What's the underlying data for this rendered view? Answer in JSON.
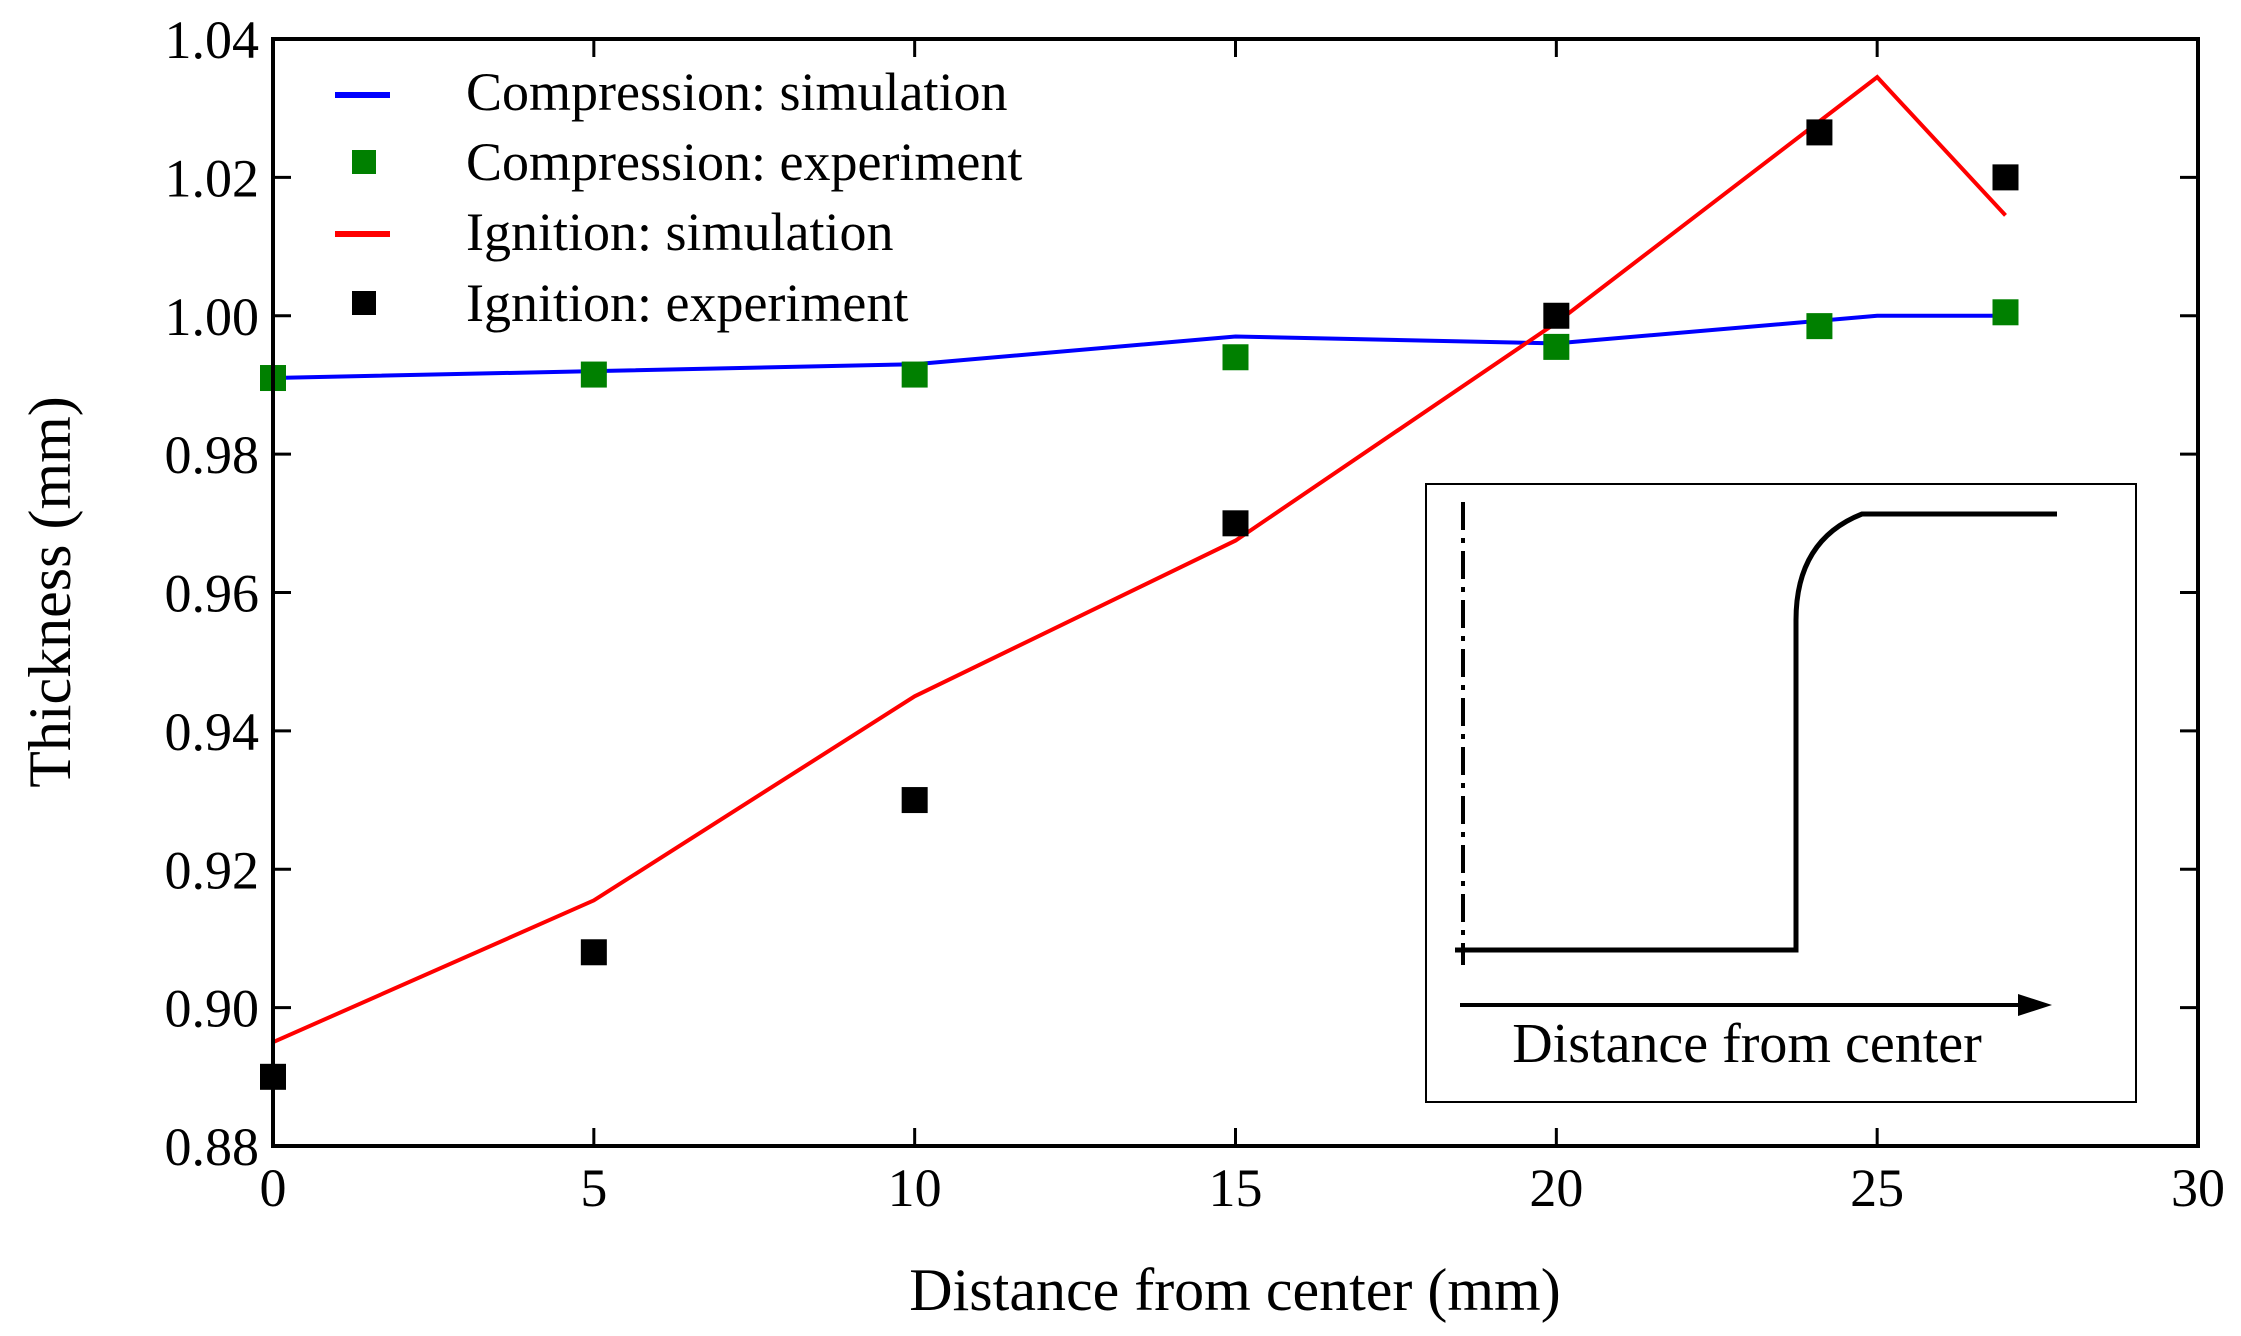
{
  "chart_data": {
    "type": "line",
    "xlabel": "Distance from center (mm)",
    "ylabel": "Thickness (mm)",
    "xlim": [
      0,
      30
    ],
    "ylim": [
      0.88,
      1.04
    ],
    "xticks": [
      0,
      5,
      10,
      15,
      20,
      25,
      30
    ],
    "yticks": [
      0.88,
      0.9,
      0.92,
      0.94,
      0.96,
      0.98,
      1.0,
      1.02,
      1.04
    ],
    "xtick_labels": [
      "0",
      "5",
      "10",
      "15",
      "20",
      "25",
      "30"
    ],
    "ytick_labels": [
      "0.88",
      "0.90",
      "0.92",
      "0.94",
      "0.96",
      "0.98",
      "1.00",
      "1.02",
      "1.04"
    ],
    "grid": false,
    "legend_position": "top-left",
    "series": [
      {
        "name": "Compression: simulation",
        "kind": "line",
        "color": "#0000ff",
        "x": [
          0,
          5,
          10,
          15,
          20,
          25,
          27
        ],
        "y": [
          0.991,
          0.992,
          0.993,
          0.997,
          0.996,
          1.0,
          1.0
        ]
      },
      {
        "name": "Compression: experiment",
        "kind": "marker",
        "color": "#008000",
        "x": [
          0,
          5,
          10,
          15,
          20,
          24.1,
          27
        ],
        "y": [
          0.991,
          0.9915,
          0.9915,
          0.994,
          0.9955,
          0.9985,
          1.0005
        ]
      },
      {
        "name": "Ignition: simulation",
        "kind": "line",
        "color": "#ff0000",
        "x": [
          0,
          5,
          10,
          15,
          20,
          25,
          27
        ],
        "y": [
          0.895,
          0.9155,
          0.945,
          0.9675,
          0.999,
          1.0345,
          1.0145
        ]
      },
      {
        "name": "Ignition: experiment",
        "kind": "marker",
        "color": "#000000",
        "x": [
          0,
          5,
          10,
          15,
          20,
          24.1,
          27
        ],
        "y": [
          0.89,
          0.908,
          0.93,
          0.97,
          1.0,
          1.0265,
          1.02
        ]
      }
    ],
    "inset": {
      "label": "Distance from center"
    }
  }
}
